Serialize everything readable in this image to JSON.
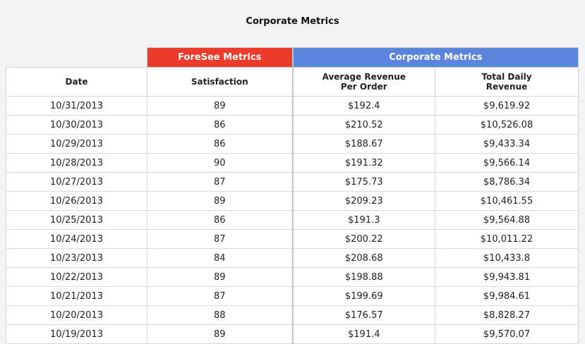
{
  "page": {
    "title": "Corporate Metrics"
  },
  "colors": {
    "background": "#f3f3f3",
    "foresee_header": "#ef3b2c",
    "corporate_header": "#5b84df",
    "cell_background": "#ffffff",
    "grid_line": "#d9d9d9"
  },
  "table": {
    "groups": {
      "foresee": "ForeSee Metrics",
      "corporate": "Corporate Metrics"
    },
    "columns": {
      "date": "Date",
      "satisfaction": "Satisfaction",
      "avg_revenue_line1": "Average Revenue",
      "avg_revenue_line2": "Per Order",
      "total_revenue_line1": "Total Daily",
      "total_revenue_line2": "Revenue"
    },
    "rows": [
      {
        "date": "10/31/2013",
        "satisfaction": "89",
        "avg_revenue": "$192.4",
        "total_revenue": "$9,619.92"
      },
      {
        "date": "10/30/2013",
        "satisfaction": "86",
        "avg_revenue": "$210.52",
        "total_revenue": "$10,526.08"
      },
      {
        "date": "10/29/2013",
        "satisfaction": "86",
        "avg_revenue": "$188.67",
        "total_revenue": "$9,433.34"
      },
      {
        "date": "10/28/2013",
        "satisfaction": "90",
        "avg_revenue": "$191.32",
        "total_revenue": "$9,566.14"
      },
      {
        "date": "10/27/2013",
        "satisfaction": "87",
        "avg_revenue": "$175.73",
        "total_revenue": "$8,786.34"
      },
      {
        "date": "10/26/2013",
        "satisfaction": "89",
        "avg_revenue": "$209.23",
        "total_revenue": "$10,461.55"
      },
      {
        "date": "10/25/2013",
        "satisfaction": "86",
        "avg_revenue": "$191.3",
        "total_revenue": "$9,564.88"
      },
      {
        "date": "10/24/2013",
        "satisfaction": "87",
        "avg_revenue": "$200.22",
        "total_revenue": "$10,011.22"
      },
      {
        "date": "10/23/2013",
        "satisfaction": "84",
        "avg_revenue": "$208.68",
        "total_revenue": "$10,433.8"
      },
      {
        "date": "10/22/2013",
        "satisfaction": "89",
        "avg_revenue": "$198.88",
        "total_revenue": "$9,943.81"
      },
      {
        "date": "10/21/2013",
        "satisfaction": "87",
        "avg_revenue": "$199.69",
        "total_revenue": "$9,984.61"
      },
      {
        "date": "10/20/2013",
        "satisfaction": "88",
        "avg_revenue": "$176.57",
        "total_revenue": "$8,828.27"
      },
      {
        "date": "10/19/2013",
        "satisfaction": "89",
        "avg_revenue": "$191.4",
        "total_revenue": "$9,570.07"
      }
    ]
  }
}
